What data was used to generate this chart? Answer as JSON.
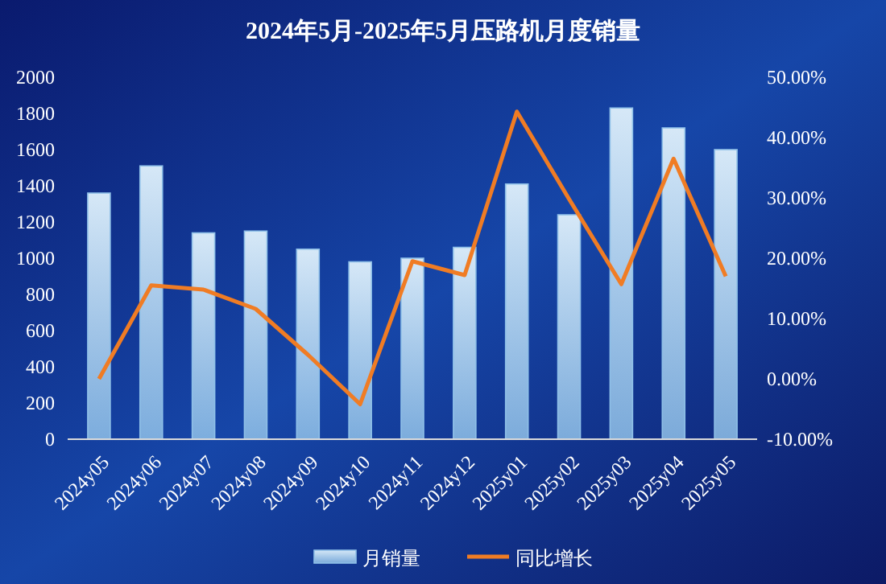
{
  "chart_data": {
    "type": "bar",
    "title": "2024年5月-2025年5月压路机月度销量",
    "categories": [
      "2024y05",
      "2024y06",
      "2024y07",
      "2024y08",
      "2024y09",
      "2024y10",
      "2024y11",
      "2024y12",
      "2025y01",
      "2025y02",
      "2025y03",
      "2025y04",
      "2025y05"
    ],
    "series": [
      {
        "name": "月销量",
        "color": "#8fc0e8",
        "values": [
          1360,
          1510,
          1140,
          1150,
          1050,
          980,
          1000,
          1060,
          1410,
          1240,
          1830,
          1720,
          1600
        ]
      },
      {
        "name": "同比增长",
        "type": "line",
        "axis": "y2",
        "color": "#f07c24",
        "values": [
          0.0,
          15.5,
          14.8,
          11.6,
          4.0,
          -4.2,
          19.5,
          17.2,
          44.3,
          29.8,
          15.7,
          36.5,
          17.0
        ]
      }
    ],
    "ylim": [
      0,
      2000
    ],
    "yticks": [
      0,
      200,
      400,
      600,
      800,
      1000,
      1200,
      1400,
      1600,
      1800,
      2000
    ],
    "y2lim": [
      -10,
      50
    ],
    "y2ticks": [
      {
        "value": -10,
        "label": "-10.00%"
      },
      {
        "value": 0,
        "label": "0.00%"
      },
      {
        "value": 10,
        "label": "10.00%"
      },
      {
        "value": 20,
        "label": "20.00%"
      },
      {
        "value": 30,
        "label": "30.00%"
      },
      {
        "value": 40,
        "label": "40.00%"
      },
      {
        "value": 50,
        "label": "50.00%"
      }
    ],
    "grid": false,
    "legend": "bottom",
    "marker": "none",
    "line_style": "solid"
  }
}
